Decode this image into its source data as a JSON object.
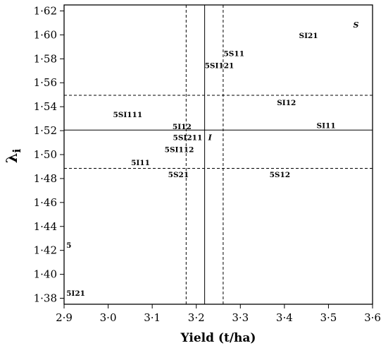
{
  "chart_data": {
    "type": "scatter",
    "xlabel": "Yield (t/ha)",
    "ylabel": "λ",
    "ylabel_sub": "i",
    "xlim": [
      2.9,
      3.6
    ],
    "ylim": [
      1.375,
      1.625
    ],
    "xticks": [
      2.9,
      3.0,
      3.1,
      3.2,
      3.3,
      3.4,
      3.5,
      3.6
    ],
    "xtick_labels": [
      "2·9",
      "3·0",
      "3·1",
      "3·2",
      "3·3",
      "3·4",
      "3·5",
      "3·6"
    ],
    "yticks": [
      1.38,
      1.4,
      1.42,
      1.44,
      1.46,
      1.48,
      1.5,
      1.52,
      1.54,
      1.56,
      1.58,
      1.6,
      1.62
    ],
    "ytick_labels": [
      "1·38",
      "1·40",
      "1·42",
      "1·44",
      "1·46",
      "1·48",
      "1·50",
      "1·52",
      "1·54",
      "1·56",
      "1·58",
      "1·60",
      "1·62"
    ],
    "grid": false,
    "reference_lines": {
      "vertical": [
        {
          "x": 3.219,
          "style": "solid"
        },
        {
          "x": 3.177,
          "style": "dashed"
        },
        {
          "x": 3.261,
          "style": "dashed"
        }
      ],
      "horizontal": [
        {
          "y": 1.5205,
          "style": "solid"
        },
        {
          "y": 1.5495,
          "style": "dashed"
        },
        {
          "y": 1.4885,
          "style": "dashed"
        }
      ]
    },
    "points": [
      {
        "label": "S",
        "x": 3.556,
        "y": 1.6085,
        "italic": true
      },
      {
        "label": "SI21",
        "x": 3.433,
        "y": 1.5995
      },
      {
        "label": "5S11",
        "x": 3.262,
        "y": 1.5845
      },
      {
        "label": "5SI121",
        "x": 3.219,
        "y": 1.5745
      },
      {
        "label": "SI12",
        "x": 3.383,
        "y": 1.5435
      },
      {
        "label": "5SI111",
        "x": 3.011,
        "y": 1.5335
      },
      {
        "label": "SI11",
        "x": 3.473,
        "y": 1.5245
      },
      {
        "label": "5I12",
        "x": 3.146,
        "y": 1.5235
      },
      {
        "label": "5SI211",
        "x": 3.147,
        "y": 1.5145
      },
      {
        "label": "I",
        "x": 3.227,
        "y": 1.5145,
        "italic": true
      },
      {
        "label": "5SI112",
        "x": 3.128,
        "y": 1.5045
      },
      {
        "label": "5I11",
        "x": 3.052,
        "y": 1.4935
      },
      {
        "label": "5S21",
        "x": 3.136,
        "y": 1.4835
      },
      {
        "label": "5S12",
        "x": 3.366,
        "y": 1.4835
      },
      {
        "label": "5",
        "x": 2.905,
        "y": 1.4245
      },
      {
        "label": "5I21",
        "x": 2.905,
        "y": 1.3845
      }
    ]
  }
}
